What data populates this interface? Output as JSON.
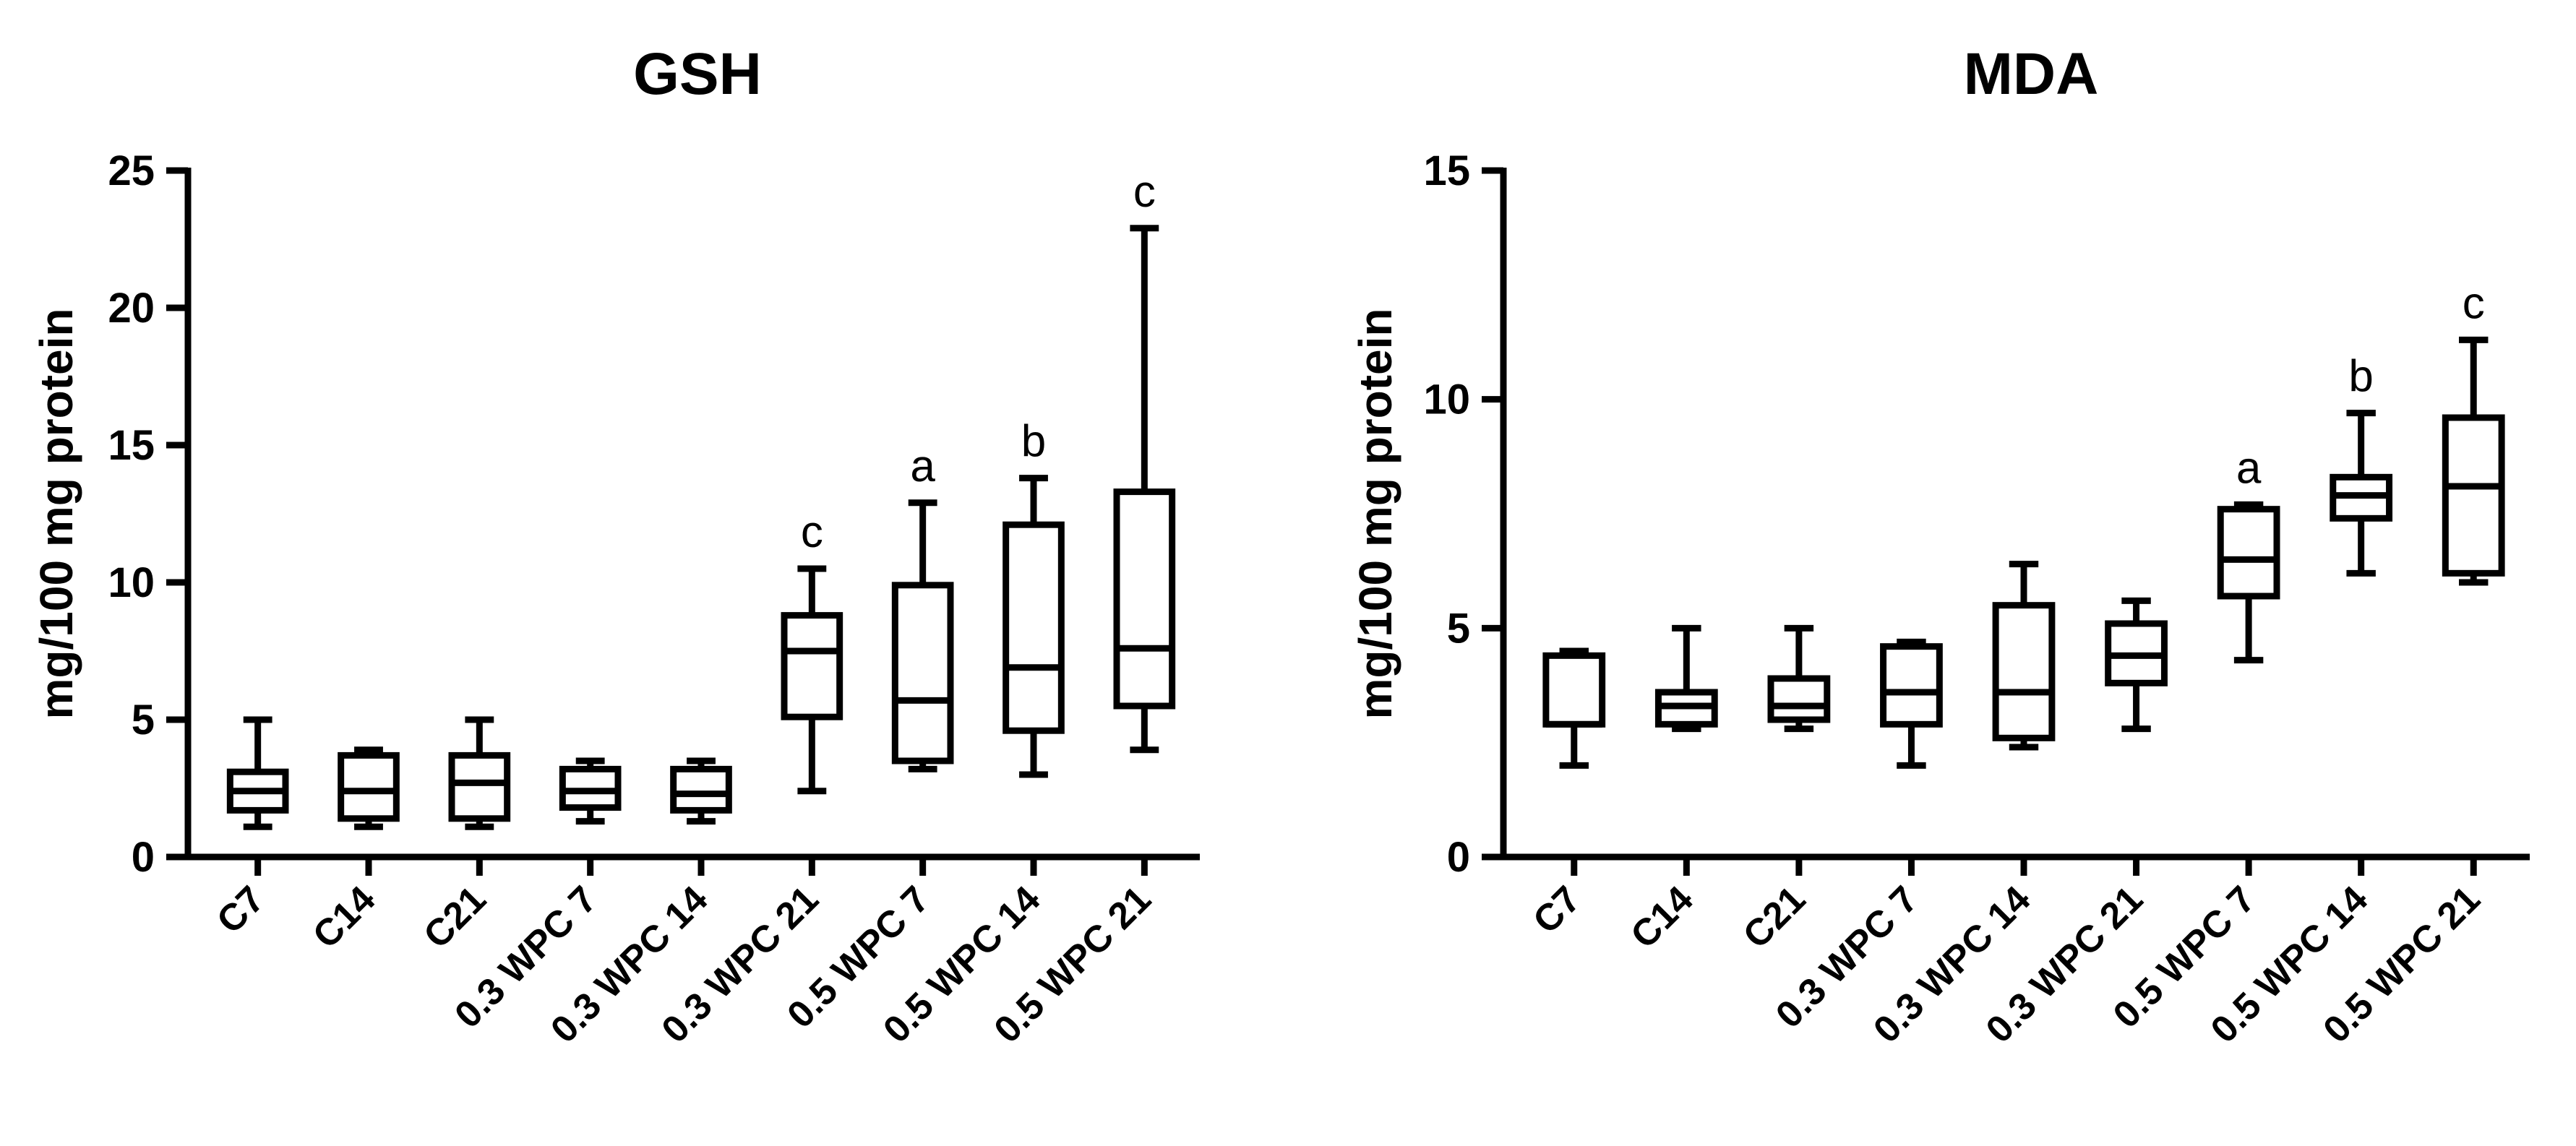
{
  "figure": {
    "chart_data": [
      {
        "type": "box",
        "title": "GSH",
        "ylabel": "mg/100 mg protein",
        "xlabel": "",
        "ylim": [
          0,
          25
        ],
        "yticks": [
          0,
          5,
          10,
          15,
          20,
          25
        ],
        "categories": [
          "C7",
          "C14",
          "C21",
          "0.3 WPC 7",
          "0.3 WPC 14",
          "0.3 WPC 21",
          "0.5 WPC 7",
          "0.5 WPC 14",
          "0.5 WPC 21"
        ],
        "boxes": [
          {
            "min": 1.1,
            "q1": 1.7,
            "median": 2.4,
            "q3": 3.1,
            "max": 5.0,
            "annotation": ""
          },
          {
            "min": 1.1,
            "q1": 1.4,
            "median": 2.4,
            "q3": 3.7,
            "max": 3.9,
            "annotation": ""
          },
          {
            "min": 1.1,
            "q1": 1.4,
            "median": 2.7,
            "q3": 3.7,
            "max": 5.0,
            "annotation": ""
          },
          {
            "min": 1.3,
            "q1": 1.8,
            "median": 2.4,
            "q3": 3.2,
            "max": 3.5,
            "annotation": ""
          },
          {
            "min": 1.3,
            "q1": 1.7,
            "median": 2.3,
            "q3": 3.2,
            "max": 3.5,
            "annotation": ""
          },
          {
            "min": 2.4,
            "q1": 5.1,
            "median": 7.5,
            "q3": 8.8,
            "max": 10.5,
            "annotation": "c"
          },
          {
            "min": 3.2,
            "q1": 3.5,
            "median": 5.7,
            "q3": 9.9,
            "max": 12.9,
            "annotation": "a"
          },
          {
            "min": 3.0,
            "q1": 4.6,
            "median": 6.9,
            "q3": 12.1,
            "max": 13.8,
            "annotation": "b"
          },
          {
            "min": 3.9,
            "q1": 5.5,
            "median": 7.6,
            "q3": 13.3,
            "max": 22.9,
            "annotation": "c"
          }
        ]
      },
      {
        "type": "box",
        "title": "MDA",
        "ylabel": "mg/100 mg protein",
        "xlabel": "",
        "ylim": [
          0,
          15
        ],
        "yticks": [
          0,
          5,
          10,
          15
        ],
        "categories": [
          "C7",
          "C14",
          "C21",
          "0.3 WPC 7",
          "0.3 WPC 14",
          "0.3 WPC 21",
          "0.5 WPC 7",
          "0.5 WPC 14",
          "0.5 WPC 21"
        ],
        "boxes": [
          {
            "min": 2.0,
            "q1": 2.9,
            "median": 2.9,
            "q3": 4.4,
            "max": 4.5,
            "annotation": ""
          },
          {
            "min": 2.8,
            "q1": 2.9,
            "median": 3.3,
            "q3": 3.6,
            "max": 5.0,
            "annotation": ""
          },
          {
            "min": 2.8,
            "q1": 3.0,
            "median": 3.3,
            "q3": 3.9,
            "max": 5.0,
            "annotation": ""
          },
          {
            "min": 2.0,
            "q1": 2.9,
            "median": 3.6,
            "q3": 4.6,
            "max": 4.7,
            "annotation": ""
          },
          {
            "min": 2.4,
            "q1": 2.6,
            "median": 3.6,
            "q3": 5.5,
            "max": 6.4,
            "annotation": ""
          },
          {
            "min": 2.8,
            "q1": 3.8,
            "median": 4.4,
            "q3": 5.1,
            "max": 5.6,
            "annotation": ""
          },
          {
            "min": 4.3,
            "q1": 5.7,
            "median": 6.5,
            "q3": 7.6,
            "max": 7.7,
            "annotation": "a"
          },
          {
            "min": 6.2,
            "q1": 7.4,
            "median": 7.9,
            "q3": 8.3,
            "max": 9.7,
            "annotation": "b"
          },
          {
            "min": 6.0,
            "q1": 6.2,
            "median": 8.1,
            "q3": 9.6,
            "max": 11.3,
            "annotation": "c"
          }
        ]
      }
    ]
  }
}
